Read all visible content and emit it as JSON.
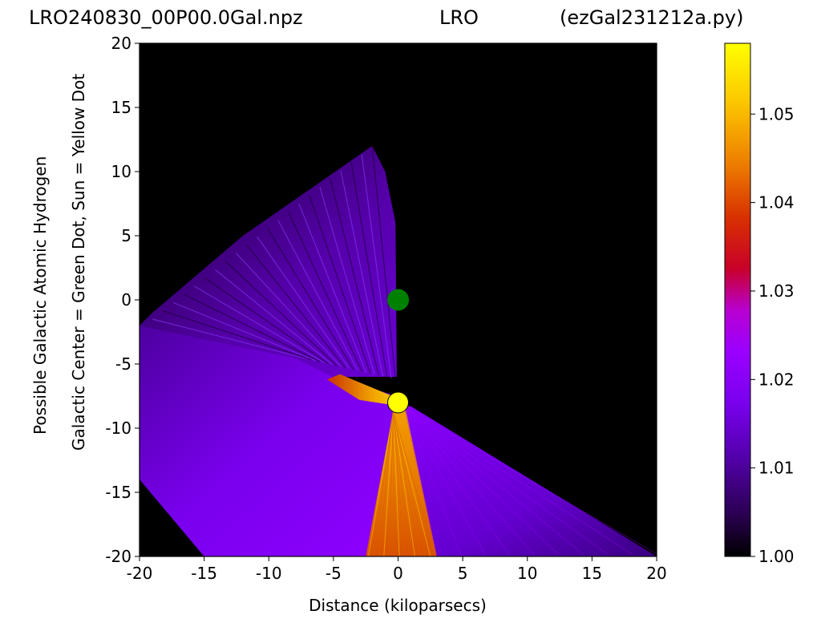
{
  "chart_data": {
    "type": "heatmap",
    "title_left": "LRO240830_00P00.0Gal.npz",
    "title_center": "LRO",
    "title_right": "(ezGal231212a.py)",
    "xlabel": "Distance (kiloparsecs)",
    "ylabel": [
      "Possible Galactic Atomic Hydrogen",
      "Galactic Center = Green Dot, Sun = Yellow Dot"
    ],
    "xlim": [
      -20,
      20
    ],
    "ylim": [
      -20,
      20
    ],
    "x_ticks": [
      "-20",
      "-15",
      "-10",
      "-5",
      "0",
      "5",
      "10",
      "15",
      "20"
    ],
    "y_ticks": [
      "20",
      "15",
      "10",
      "5",
      "0",
      "-5",
      "-10",
      "-15",
      "-20"
    ],
    "colormap": "gnuplot",
    "colorbar": {
      "min": 1.0,
      "max": 1.058,
      "ticks": [
        "1.00",
        "1.01",
        "1.02",
        "1.03",
        "1.04",
        "1.05"
      ]
    },
    "markers": [
      {
        "name": "Galactic Center",
        "x": 0,
        "y": 0,
        "color": "#008000"
      },
      {
        "name": "Sun",
        "x": 0,
        "y": -8,
        "color": "#ffff00"
      }
    ],
    "regions": [
      {
        "kind": "upper-left wedge",
        "polygon": [
          [
            -20,
            -2
          ],
          [
            -19,
            -1
          ],
          [
            -12,
            5
          ],
          [
            -2,
            12
          ],
          [
            -1,
            10
          ],
          [
            -0.2,
            6
          ],
          [
            -0.1,
            -6
          ],
          [
            -5,
            -6
          ],
          [
            -8,
            -4.5
          ]
        ],
        "value": 1.012
      },
      {
        "kind": "left fan",
        "polygon": [
          [
            -20,
            -2
          ],
          [
            -8,
            -4.5
          ],
          [
            -5,
            -6
          ],
          [
            -0.1,
            -7.5
          ],
          [
            0.3,
            -8.2
          ],
          [
            -2,
            -20
          ],
          [
            -15,
            -20
          ],
          [
            -20,
            -14
          ]
        ],
        "value": 1.016
      },
      {
        "kind": "right fan",
        "polygon": [
          [
            0.3,
            -8.2
          ],
          [
            1,
            -8.3
          ],
          [
            20,
            -20
          ],
          [
            -1,
            -20
          ]
        ],
        "value": 1.014
      },
      {
        "kind": "central spike",
        "polygon": [
          [
            -0.3,
            -8.3
          ],
          [
            -2.5,
            -20
          ],
          [
            0.5,
            -20
          ],
          [
            3,
            -20
          ],
          [
            0.6,
            -8.6
          ]
        ],
        "value": 1.045
      },
      {
        "kind": "left spike",
        "polygon": [
          [
            -5.5,
            -6.2
          ],
          [
            -4.5,
            -5.8
          ],
          [
            -0.2,
            -7.6
          ],
          [
            0.2,
            -8.3
          ],
          [
            -3,
            -7.8
          ]
        ],
        "value": 1.048
      }
    ]
  }
}
